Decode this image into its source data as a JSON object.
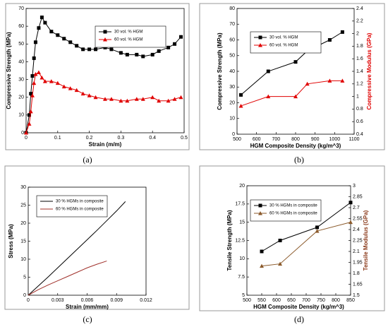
{
  "chart_data": [
    {
      "type": "line",
      "caption": "(a)",
      "xlabel": "Strain (m/m)",
      "ylabel": "Compressive Strength (MPa)",
      "xlim": [
        0,
        0.5
      ],
      "xticks": [
        0,
        0.1,
        0.2,
        0.3,
        0.4,
        0.5
      ],
      "ylim": [
        0,
        70
      ],
      "yticks": [
        0,
        10,
        20,
        30,
        40,
        50,
        60,
        70
      ],
      "series": [
        {
          "name": "30 vol. % HGM",
          "color": "#000000",
          "marker": "square",
          "x": [
            0,
            0.01,
            0.015,
            0.02,
            0.025,
            0.03,
            0.04,
            0.05,
            0.06,
            0.08,
            0.1,
            0.12,
            0.14,
            0.16,
            0.18,
            0.2,
            0.22,
            0.25,
            0.27,
            0.3,
            0.32,
            0.35,
            0.37,
            0.4,
            0.42,
            0.45,
            0.47,
            0.49
          ],
          "values": [
            0,
            10,
            22,
            32,
            42,
            51,
            59,
            65,
            62,
            57,
            55,
            53,
            51,
            49,
            47,
            47,
            47,
            48,
            47,
            45,
            44,
            44,
            43,
            44,
            46,
            48,
            50,
            54
          ]
        },
        {
          "name": "60 vol. % HGM",
          "color": "#e00000",
          "marker": "triangle",
          "x": [
            0,
            0.01,
            0.015,
            0.02,
            0.025,
            0.03,
            0.04,
            0.05,
            0.06,
            0.08,
            0.1,
            0.12,
            0.14,
            0.16,
            0.18,
            0.2,
            0.22,
            0.25,
            0.27,
            0.3,
            0.32,
            0.35,
            0.37,
            0.4,
            0.42,
            0.45,
            0.47,
            0.49
          ],
          "values": [
            0,
            5,
            12,
            21,
            28,
            33,
            34,
            31,
            29,
            29,
            28,
            26,
            25,
            24,
            22,
            21,
            20,
            19,
            19,
            18,
            18,
            19,
            19,
            20,
            18,
            18,
            19,
            20
          ]
        }
      ]
    },
    {
      "type": "line",
      "caption": "(b)",
      "xlabel": "HGM Composite Density (kg/m^3)",
      "ylabel": "Compressive Strength (MPa)",
      "y2label": "Compressive Modulus (GPa)",
      "y2color": "#e00000",
      "xlim": [
        500,
        1100
      ],
      "xticks": [
        500,
        600,
        700,
        800,
        900,
        1000,
        1100
      ],
      "ylim": [
        0,
        80
      ],
      "yticks": [
        0,
        10,
        20,
        30,
        40,
        50,
        60,
        70,
        80
      ],
      "y2lim": [
        0.4,
        2.4
      ],
      "y2ticks": [
        0.4,
        0.6,
        0.8,
        1,
        1.2,
        1.4,
        1.6,
        1.8,
        2,
        2.2,
        2.4
      ],
      "series": [
        {
          "name": "30 vol. % HGM",
          "color": "#000000",
          "marker": "square",
          "x": [
            520,
            660,
            800,
            860,
            975,
            1040
          ],
          "values": [
            25,
            40,
            46,
            53,
            60,
            65
          ]
        },
        {
          "name": "60 vol. % HGM",
          "color": "#e00000",
          "marker": "triangle",
          "axis": "y2",
          "x": [
            520,
            660,
            800,
            860,
            975,
            1040
          ],
          "values": [
            0.85,
            1,
            1,
            1.2,
            1.25,
            1.25
          ]
        }
      ]
    },
    {
      "type": "line",
      "caption": "(c)",
      "xlabel": "Strain (mm/mm)",
      "ylabel": "Stress (MPa)",
      "xlim": [
        0,
        0.012
      ],
      "xticks": [
        0,
        0.003,
        0.006,
        0.009,
        0.012
      ],
      "ylim": [
        0,
        30
      ],
      "yticks": [
        0,
        5,
        10,
        15,
        20,
        25,
        30
      ],
      "series": [
        {
          "name": "30 % HGMs in composite",
          "color": "#000000",
          "marker": null,
          "x": [
            0,
            0.001,
            0.002,
            0.003,
            0.004,
            0.005,
            0.006,
            0.007,
            0.008,
            0.009,
            0.0099
          ],
          "values": [
            0,
            2.5,
            5,
            7.6,
            10.2,
            12.8,
            15.4,
            18,
            20.7,
            23.4,
            26
          ]
        },
        {
          "name": "60 % HGMs in composite",
          "color": "#a0302a",
          "marker": null,
          "x": [
            0,
            0.001,
            0.002,
            0.003,
            0.004,
            0.005,
            0.006,
            0.007,
            0.008
          ],
          "values": [
            0,
            1.5,
            2.8,
            4,
            5.2,
            6.4,
            7.6,
            8.6,
            9.5
          ]
        }
      ]
    },
    {
      "type": "line",
      "caption": "(d)",
      "xlabel": "HGM Composite Density (kg/m^3)",
      "ylabel": "Tensile Strength (MPa)",
      "y2label": "Tensile Modulus (GPa)",
      "y2color": "#8b3a1a",
      "xlim": [
        500,
        850
      ],
      "xticks": [
        500,
        550,
        600,
        650,
        700,
        750,
        800,
        850
      ],
      "ylim": [
        5,
        20
      ],
      "yticks": [
        5,
        7.5,
        10,
        12.5,
        15,
        17.5,
        20
      ],
      "y2lim": [
        1.5,
        3
      ],
      "y2ticks": [
        1.5,
        1.65,
        1.8,
        1.95,
        2.1,
        2.25,
        2.4,
        2.55,
        2.7,
        2.85,
        3
      ],
      "series": [
        {
          "name": "30 % HGMs in composite",
          "color": "#000000",
          "marker": "square",
          "x": [
            550,
            612,
            737,
            850
          ],
          "values": [
            11,
            12.5,
            14.3,
            17.7
          ]
        },
        {
          "name": "60 % HGMs in composite",
          "color": "#8b5a2b",
          "marker": "triangle",
          "axis": "y2",
          "x": [
            550,
            612,
            737,
            850
          ],
          "values": [
            1.9,
            1.93,
            2.38,
            2.5
          ]
        }
      ]
    }
  ]
}
